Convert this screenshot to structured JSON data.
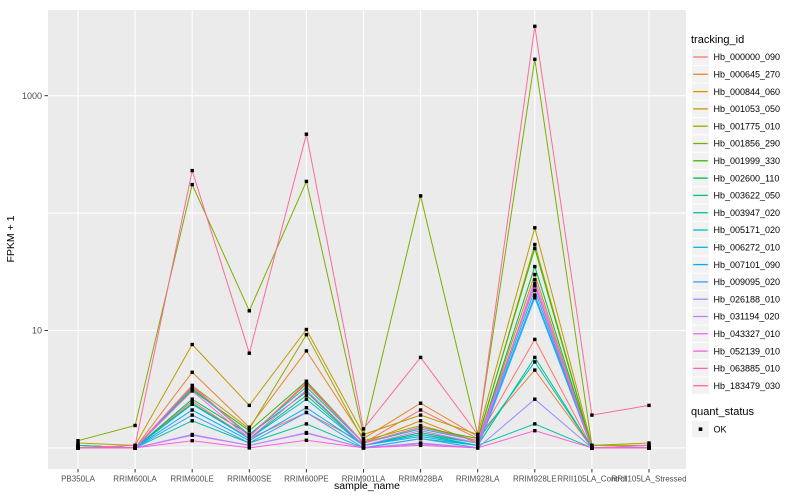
{
  "chart_data": {
    "type": "line",
    "title": "",
    "xlabel": "sample_name",
    "ylabel": "FPKM + 1",
    "y_scale": "log10",
    "grid": true,
    "legend_position": "right",
    "panel_bg": "#EBEBEB",
    "grid_color": "#FFFFFF",
    "axis_text_color": "#4D4D4D",
    "tick_color": "#333333",
    "point_color": "#000000",
    "legend_key_bg": "#F2F2F2",
    "ylim_log": [
      -0.18,
      3.73
    ],
    "grid_values": [
      1,
      10,
      100,
      1000
    ],
    "y_ticks": [
      {
        "value": 10,
        "label": "10"
      },
      {
        "value": 1000,
        "label": "1000"
      }
    ],
    "categories": [
      "PB350LA",
      "RRIM600LA",
      "RRIM600LE",
      "RRIM600SE",
      "RRIM600PE",
      "RRIM901LA",
      "RRIM928BA",
      "RRIM928LA",
      "RRIM928LE",
      "RRII105LA_Control",
      "RRII105LA_Stressed"
    ],
    "series": [
      {
        "name": "Hb_000000_090",
        "color": "#F8766D",
        "values": [
          1.0,
          1.0,
          2.5,
          1.2,
          2.0,
          1.1,
          2.1,
          1.2,
          8.4,
          1.0,
          1.0
        ]
      },
      {
        "name": "Hb_000645_270",
        "color": "#EA8331",
        "values": [
          1.05,
          1.0,
          4.4,
          1.5,
          6.7,
          1.2,
          2.4,
          1.25,
          4.6,
          1.0,
          1.0
        ]
      },
      {
        "name": "Hb_000844_060",
        "color": "#D89000",
        "values": [
          1.0,
          1.0,
          3.3,
          1.25,
          3.5,
          1.1,
          1.7,
          1.1,
          30,
          1.0,
          1.0
        ]
      },
      {
        "name": "Hb_001053_050",
        "color": "#C09B00",
        "values": [
          1.1,
          1.05,
          7.6,
          2.3,
          10.2,
          1.3,
          1.9,
          1.3,
          75,
          1.05,
          1.1
        ]
      },
      {
        "name": "Hb_001775_010",
        "color": "#A3A500",
        "values": [
          1.05,
          1.0,
          3.4,
          1.45,
          9.2,
          1.15,
          1.55,
          1.15,
          54,
          1.0,
          1.05
        ]
      },
      {
        "name": "Hb_001856_290",
        "color": "#7CAE00",
        "values": [
          1.15,
          1.55,
          175,
          14.7,
          186,
          1.3,
          140,
          1.3,
          2040,
          1.05,
          1.05
        ]
      },
      {
        "name": "Hb_001999_330",
        "color": "#39B600",
        "values": [
          1.0,
          1.0,
          3.1,
          1.4,
          3.7,
          1.1,
          1.5,
          1.2,
          50,
          1.0,
          1.0
        ]
      },
      {
        "name": "Hb_002600_110",
        "color": "#00BB4E",
        "values": [
          1.05,
          1.0,
          2.6,
          1.3,
          3.0,
          1.05,
          1.35,
          1.1,
          35,
          1.0,
          1.0
        ]
      },
      {
        "name": "Hb_003622_050",
        "color": "#00BF7D",
        "values": [
          1.0,
          1.0,
          2.4,
          1.2,
          2.8,
          1.05,
          1.3,
          1.05,
          5.9,
          1.0,
          1.0
        ]
      },
      {
        "name": "Hb_003947_020",
        "color": "#00C1A3",
        "values": [
          1.0,
          1.0,
          1.7,
          1.1,
          1.6,
          1.0,
          1.2,
          1.05,
          1.6,
          1.0,
          1.0
        ]
      },
      {
        "name": "Hb_005171_020",
        "color": "#00BFC4",
        "values": [
          1.05,
          1.0,
          3.2,
          1.3,
          3.3,
          1.1,
          1.45,
          1.15,
          5.4,
          1.0,
          1.0
        ]
      },
      {
        "name": "Hb_006272_010",
        "color": "#00BAE0",
        "values": [
          1.0,
          1.0,
          2.35,
          1.2,
          2.6,
          1.05,
          1.3,
          1.1,
          22,
          1.0,
          1.0
        ]
      },
      {
        "name": "Hb_007101_090",
        "color": "#00B0F6",
        "values": [
          1.0,
          1.0,
          2.1,
          1.15,
          2.2,
          1.05,
          1.25,
          1.05,
          20,
          1.0,
          1.0
        ]
      },
      {
        "name": "Hb_009095_020",
        "color": "#35A2FF",
        "values": [
          1.0,
          1.0,
          1.9,
          1.1,
          2.0,
          1.0,
          1.2,
          1.0,
          19,
          1.0,
          1.0
        ]
      },
      {
        "name": "Hb_026188_010",
        "color": "#9590FF",
        "values": [
          1.0,
          1.0,
          1.3,
          1.05,
          1.35,
          1.0,
          1.1,
          1.0,
          2.6,
          1.0,
          1.0
        ]
      },
      {
        "name": "Hb_031194_020",
        "color": "#C77CFF",
        "values": [
          1.0,
          1.0,
          1.28,
          1.05,
          1.33,
          1.0,
          1.08,
          1.0,
          27,
          1.0,
          1.0
        ]
      },
      {
        "name": "Hb_043327_010",
        "color": "#E76BF3",
        "values": [
          1.0,
          1.0,
          3.05,
          1.2,
          3.1,
          1.05,
          1.4,
          1.1,
          25,
          1.0,
          1.0
        ]
      },
      {
        "name": "Hb_052139_010",
        "color": "#FA62DB",
        "values": [
          1.0,
          1.0,
          1.15,
          1.0,
          1.16,
          1.0,
          1.05,
          1.0,
          1.4,
          1.0,
          1.05
        ]
      },
      {
        "name": "Hb_063885_010",
        "color": "#FF62BC",
        "values": [
          1.0,
          1.0,
          3.4,
          1.25,
          3.6,
          1.1,
          1.5,
          1.15,
          24,
          1.0,
          1.0
        ]
      },
      {
        "name": "Hb_183479_030",
        "color": "#FF6A98",
        "values": [
          1.0,
          1.05,
          230,
          6.4,
          470,
          1.45,
          5.9,
          1.3,
          3900,
          1.9,
          2.3
        ]
      }
    ],
    "legend": {
      "tracking_title": "tracking_id",
      "quant_title": "quant_status",
      "quant_items": [
        {
          "label": "OK",
          "marker": "black-square"
        }
      ]
    }
  }
}
